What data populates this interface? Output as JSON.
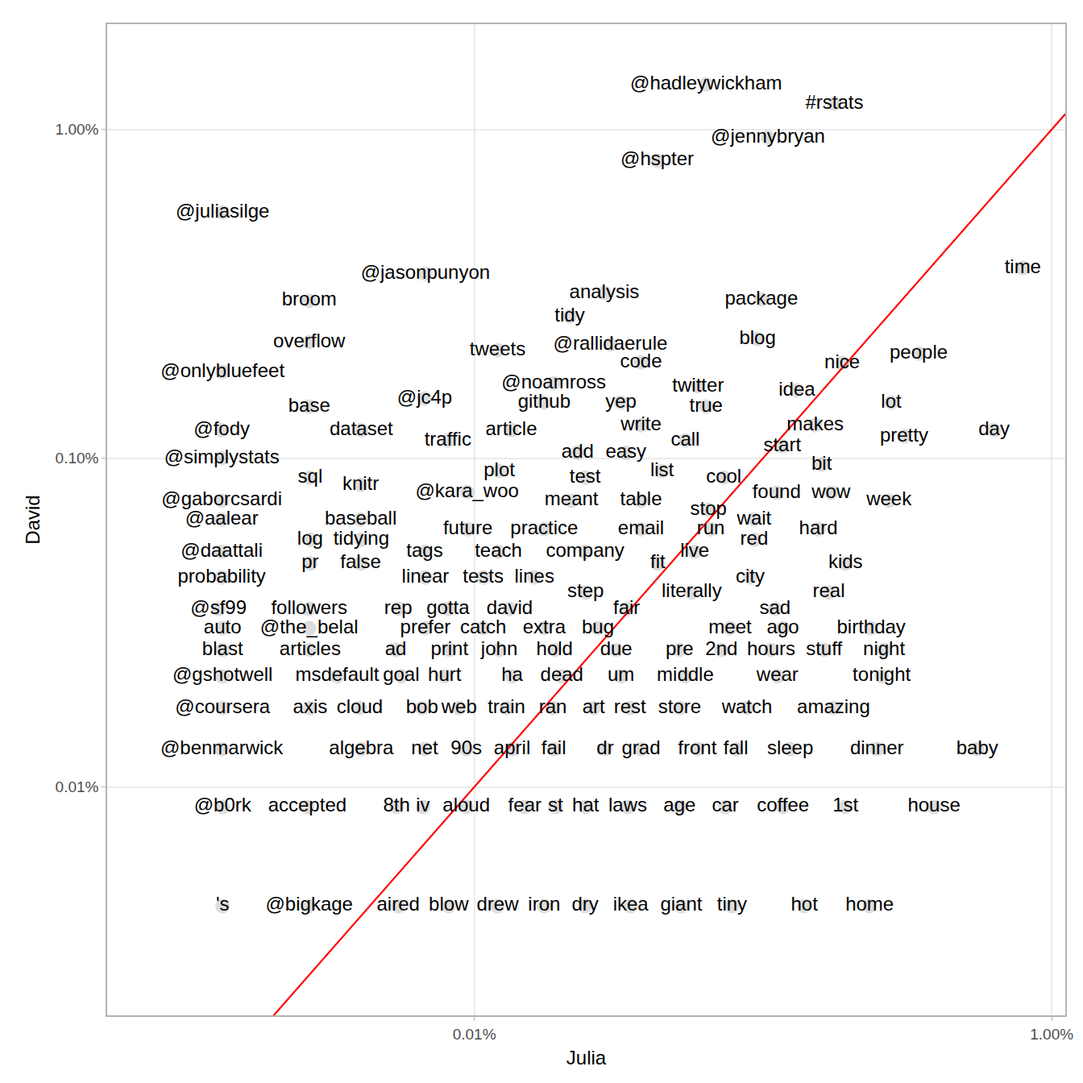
{
  "chart_data": {
    "type": "scatter",
    "x_label": "Julia",
    "y_label": "David",
    "log": true,
    "grid": true,
    "color": "black",
    "marker": "circle",
    "xlim": [
      0.000535,
      1.114
    ],
    "ylim": [
      0.00202,
      2.09
    ],
    "xticks": [
      {
        "value": 0.01,
        "label": "0.01%"
      },
      {
        "value": 1,
        "label": "1.00%"
      }
    ],
    "yticks": [
      {
        "value": 0.01,
        "label": "0.01%"
      },
      {
        "value": 0.1,
        "label": "0.10%"
      },
      {
        "value": 1,
        "label": "1.00%"
      }
    ],
    "reference_line": {
      "type": "line",
      "color": "red",
      "x": [
        0.000535,
        1.114
      ],
      "y": [
        0.000535,
        1.114
      ]
    },
    "words": [
      "@hadleywickham",
      "#rstats",
      "@jennybryan",
      "@hspter",
      "@juliasilge",
      "time",
      "@jasonpunyon",
      "analysis",
      "broom",
      "package",
      "tidy",
      "blog",
      "overflow",
      "tweets",
      "@rallidaerule",
      "code",
      "people",
      "nice",
      "@onlybluefeet",
      "@noamross",
      "twitter",
      "idea",
      "@jc4p",
      "github",
      "yep",
      "true",
      "lot",
      "base",
      "@fody",
      "dataset",
      "article",
      "write",
      "makes",
      "day",
      "traffic",
      "call",
      "pretty",
      "start",
      "add",
      "easy",
      "@simplystats",
      "list",
      "bit",
      "plot",
      "sql",
      "test",
      "cool",
      "knitr",
      "@kara_woo",
      "found",
      "wow",
      "@gaborcsardi",
      "meant",
      "table",
      "week",
      "stop",
      "@aalear",
      "baseball",
      "wait",
      "future",
      "practice",
      "email",
      "run",
      "hard",
      "log",
      "tidying",
      "red",
      "@daattali",
      "tags",
      "teach",
      "company",
      "live",
      "pr",
      "false",
      "fit",
      "kids",
      "probability",
      "linear",
      "tests",
      "lines",
      "city",
      "step",
      "literally",
      "real",
      "@sf99",
      "followers",
      "rep",
      "gotta",
      "david",
      "fair",
      "sad",
      "auto",
      "@the_belal",
      "prefer",
      "catch",
      "extra",
      "bug",
      "meet",
      "ago",
      "birthday",
      "blast",
      "articles",
      "ad",
      "print",
      "john",
      "hold",
      "due",
      "pre",
      "2nd",
      "hours",
      "stuff",
      "night",
      "@gshotwell",
      "msdefault",
      "goal",
      "hurt",
      "ha",
      "dead",
      "um",
      "middle",
      "wear",
      "tonight",
      "@coursera",
      "axis",
      "cloud",
      "bob",
      "web",
      "train",
      "ran",
      "art",
      "rest",
      "store",
      "watch",
      "amazing",
      "@benmarwick",
      "algebra",
      "net",
      "90s",
      "april",
      "fail",
      "dr",
      "grad",
      "front",
      "fall",
      "sleep",
      "dinner",
      "baby",
      "@b0rk",
      "accepted",
      "8th",
      "iv",
      "aloud",
      "fear",
      "st",
      "hat",
      "laws",
      "age",
      "car",
      "coffee",
      "1st",
      "house",
      "'s",
      "@bigkage",
      "aired",
      "blow",
      "drew",
      "iron",
      "dry",
      "ikea",
      "giant",
      "tiny",
      "hot",
      "home"
    ],
    "x": [
      0.0635,
      0.1766,
      0.104,
      0.043,
      0.001343,
      0.794,
      0.00677,
      0.0282,
      0.00268,
      0.0987,
      0.0214,
      0.0957,
      0.00268,
      0.01204,
      0.0296,
      0.0378,
      0.346,
      0.188,
      0.001343,
      0.01884,
      0.0596,
      0.131,
      0.00673,
      0.01746,
      0.0322,
      0.0635,
      0.278,
      0.00268,
      0.001334,
      0.00406,
      0.01343,
      0.0378,
      0.1516,
      0.631,
      0.0081,
      0.0538,
      0.308,
      0.1166,
      0.0228,
      0.0335,
      0.001334,
      0.0447,
      0.1596,
      0.0122,
      0.0027,
      0.0242,
      0.0731,
      0.00404,
      0.00944,
      0.1114,
      0.172,
      0.001334,
      0.0217,
      0.0378,
      0.273,
      0.0647,
      0.001334,
      0.00404,
      0.0932,
      0.0095,
      0.01746,
      0.0378,
      0.0659,
      0.1555,
      0.0027,
      0.00406,
      0.0932,
      0.001334,
      0.00673,
      0.01212,
      0.0242,
      0.058,
      0.0027,
      0.00404,
      0.0432,
      0.193,
      0.001334,
      0.00677,
      0.01073,
      0.01615,
      0.0903,
      0.0243,
      0.0566,
      0.169,
      0.0013,
      0.00268,
      0.00545,
      0.0081,
      0.01325,
      0.0337,
      0.1101,
      0.001343,
      0.00268,
      0.00677,
      0.01073,
      0.01746,
      0.0268,
      0.0769,
      0.1172,
      0.237,
      0.001343,
      0.0027,
      0.00534,
      0.0082,
      0.0122,
      0.01897,
      0.031,
      0.0514,
      0.0718,
      0.1067,
      0.1627,
      0.2625,
      0.001343,
      0.00335,
      0.00558,
      0.00789,
      0.01352,
      0.0201,
      0.0322,
      0.0538,
      0.1122,
      0.2576,
      0.001343,
      0.0027,
      0.00401,
      0.00659,
      0.00886,
      0.01292,
      0.0187,
      0.0259,
      0.0346,
      0.0514,
      0.088,
      0.1755,
      0.001334,
      0.00406,
      0.00673,
      0.00938,
      0.01352,
      0.01884,
      0.0284,
      0.0378,
      0.0592,
      0.0805,
      0.1242,
      0.248,
      0.552,
      0.001343,
      0.00264,
      0.00538,
      0.00664,
      0.00938,
      0.01496,
      0.0191,
      0.0243,
      0.034,
      0.0514,
      0.074,
      0.1172,
      0.193,
      0.391,
      0.001343,
      0.00268,
      0.00545,
      0.00815,
      0.01204,
      0.01746,
      0.0242,
      0.0348,
      0.0521,
      0.0781,
      0.139,
      0.234
    ],
    "y": [
      1.372,
      1.197,
      0.945,
      0.803,
      0.559,
      0.379,
      0.364,
      0.318,
      0.301,
      0.304,
      0.27,
      0.2305,
      0.2254,
      0.213,
      0.2217,
      0.1957,
      0.2083,
      0.1947,
      0.1829,
      0.169,
      0.1653,
      0.1607,
      0.1518,
      0.1476,
      0.1476,
      0.1435,
      0.1476,
      0.1435,
      0.1218,
      0.1218,
      0.1218,
      0.126,
      0.126,
      0.1218,
      0.1132,
      0.1132,
      0.1165,
      0.1088,
      0.104,
      0.104,
      0.1,
      0.0914,
      0.0956,
      0.0914,
      0.0873,
      0.0873,
      0.0873,
      0.083,
      0.0789,
      0.0785,
      0.0785,
      0.0742,
      0.0742,
      0.0742,
      0.0742,
      0.0697,
      0.0651,
      0.0651,
      0.0651,
      0.0608,
      0.0608,
      0.0608,
      0.0608,
      0.0608,
      0.0565,
      0.0565,
      0.0565,
      0.0519,
      0.0519,
      0.0519,
      0.0519,
      0.0519,
      0.0478,
      0.0478,
      0.0478,
      0.0478,
      0.0434,
      0.0434,
      0.0434,
      0.0434,
      0.0434,
      0.039,
      0.039,
      0.039,
      0.0348,
      0.0348,
      0.0348,
      0.0348,
      0.0348,
      0.0348,
      0.0348,
      0.0304,
      0.0304,
      0.0304,
      0.0304,
      0.0304,
      0.0304,
      0.0304,
      0.0304,
      0.0304,
      0.0261,
      0.0261,
      0.0261,
      0.0261,
      0.0261,
      0.0261,
      0.0261,
      0.0261,
      0.0261,
      0.0261,
      0.0261,
      0.0261,
      0.0217,
      0.0217,
      0.0217,
      0.0217,
      0.0217,
      0.0217,
      0.0217,
      0.0217,
      0.0217,
      0.0217,
      0.01738,
      0.01738,
      0.01738,
      0.01738,
      0.01738,
      0.01738,
      0.01738,
      0.01738,
      0.01738,
      0.01738,
      0.01738,
      0.01738,
      0.01303,
      0.01303,
      0.01303,
      0.01303,
      0.01303,
      0.01303,
      0.01303,
      0.01303,
      0.01303,
      0.01303,
      0.01303,
      0.01303,
      0.01303,
      0.00869,
      0.00869,
      0.00869,
      0.00869,
      0.00869,
      0.00869,
      0.00869,
      0.00869,
      0.00869,
      0.00869,
      0.00869,
      0.00869,
      0.00869,
      0.00869,
      0.00434,
      0.00434,
      0.00434,
      0.00434,
      0.00434,
      0.00434,
      0.00434,
      0.00434,
      0.00434,
      0.00434,
      0.00434,
      0.00434
    ]
  }
}
